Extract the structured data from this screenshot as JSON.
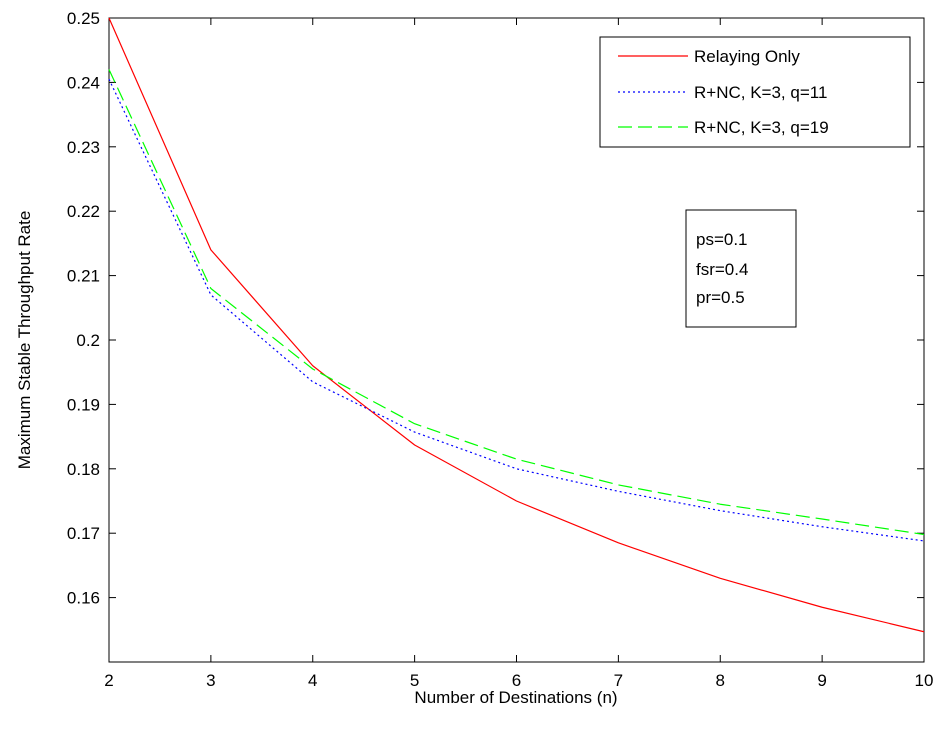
{
  "chart_data": {
    "type": "line",
    "title": "",
    "xlabel": "Number of Destinations (n)",
    "ylabel": "Maximum Stable Throughput Rate",
    "xlim": [
      2,
      10
    ],
    "ylim": [
      0.15,
      0.25
    ],
    "xticks": [
      2,
      3,
      4,
      5,
      6,
      7,
      8,
      9,
      10
    ],
    "yticks": [
      0.16,
      0.17,
      0.18,
      0.19,
      0.2,
      0.21,
      0.22,
      0.23,
      0.24,
      0.25
    ],
    "grid": false,
    "legend_position": "top-right",
    "x": [
      2,
      3,
      4,
      5,
      6,
      7,
      8,
      9,
      10
    ],
    "series": [
      {
        "name": "Relaying Only",
        "color": "#ff0000",
        "style": "solid",
        "values": [
          0.25,
          0.214,
          0.196,
          0.1837,
          0.175,
          0.1685,
          0.163,
          0.1585,
          0.1547
        ]
      },
      {
        "name": "R+NC, K=3, q=11",
        "color": "#0000ff",
        "style": "dotted",
        "values": [
          0.2405,
          0.207,
          0.1935,
          0.1857,
          0.18,
          0.1765,
          0.1735,
          0.171,
          0.1688
        ]
      },
      {
        "name": "R+NC, K=3, q=19",
        "color": "#00ff00",
        "style": "dashed",
        "values": [
          0.242,
          0.208,
          0.1955,
          0.187,
          0.1815,
          0.1775,
          0.1745,
          0.1722,
          0.1698
        ]
      }
    ],
    "annotation": [
      "ps=0.1",
      "fsr=0.4",
      "pr=0.5"
    ]
  }
}
